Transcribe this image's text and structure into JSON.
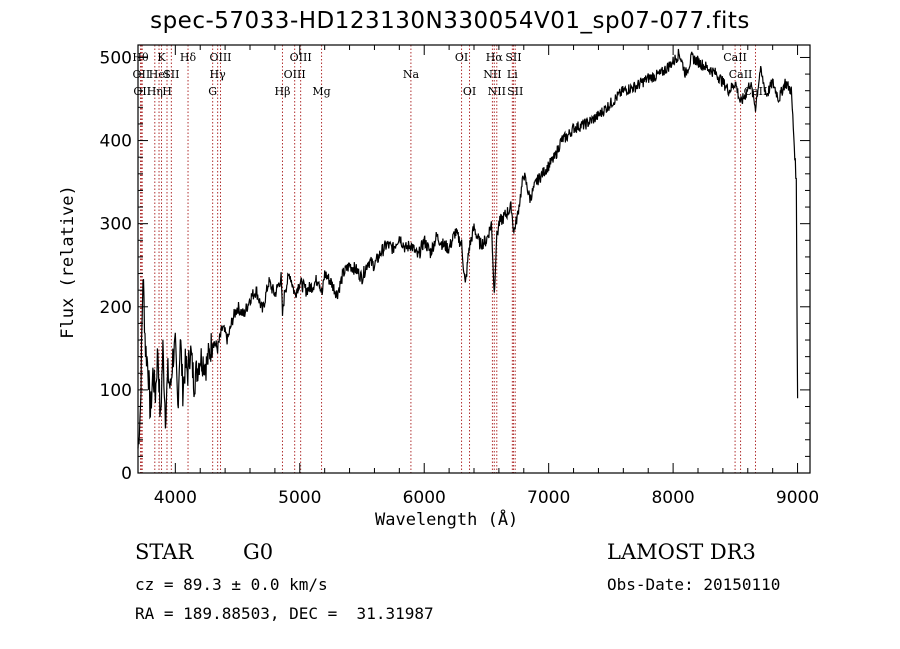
{
  "chart_data": {
    "type": "line",
    "title": "spec-57033-HD123130N330054V01_sp07-077.fits",
    "xlabel": "Wavelength (Å)",
    "ylabel": "Flux (relative)",
    "xlim": [
      3700,
      9100
    ],
    "ylim": [
      0,
      515
    ],
    "xticks": [
      4000,
      5000,
      6000,
      7000,
      8000,
      9000
    ],
    "yticks": [
      0,
      100,
      200,
      300,
      400,
      500
    ],
    "series": [
      {
        "x": [
          3700,
          3720,
          3740,
          3760,
          3780,
          3800,
          3820,
          3840,
          3860,
          3880,
          3900,
          3920,
          3940,
          3960,
          3980,
          4000,
          4020,
          4040,
          4060,
          4080,
          4100,
          4120,
          4150,
          4200,
          4250,
          4300,
          4340,
          4380,
          4420,
          4460,
          4500,
          4550,
          4600,
          4650,
          4700,
          4750,
          4800,
          4850,
          4861,
          4880,
          4920,
          4960,
          5000,
          5050,
          5100,
          5150,
          5180,
          5200,
          5250,
          5300,
          5350,
          5400,
          5450,
          5500,
          5550,
          5600,
          5650,
          5700,
          5750,
          5800,
          5850,
          5893,
          5950,
          6000,
          6050,
          6100,
          6150,
          6200,
          6250,
          6300,
          6330,
          6360,
          6400,
          6450,
          6500,
          6540,
          6563,
          6580,
          6600,
          6650,
          6700,
          6720,
          6750,
          6800,
          6850,
          6900,
          6950,
          7000,
          7050,
          7100,
          7150,
          7200,
          7300,
          7400,
          7500,
          7600,
          7700,
          7800,
          7900,
          8000,
          8050,
          8100,
          8150,
          8200,
          8250,
          8300,
          8350,
          8400,
          8450,
          8500,
          8542,
          8580,
          8620,
          8662,
          8700,
          8750,
          8800,
          8850,
          8900,
          8950,
          8990,
          9000
        ],
        "y": [
          30,
          80,
          240,
          150,
          130,
          70,
          120,
          95,
          150,
          60,
          150,
          70,
          120,
          100,
          140,
          150,
          80,
          165,
          100,
          130,
          120,
          150,
          110,
          140,
          130,
          160,
          150,
          175,
          160,
          185,
          200,
          190,
          210,
          220,
          195,
          230,
          215,
          235,
          190,
          220,
          240,
          215,
          230,
          220,
          225,
          235,
          215,
          240,
          230,
          215,
          240,
          250,
          245,
          235,
          255,
          250,
          265,
          275,
          270,
          285,
          270,
          275,
          260,
          280,
          265,
          285,
          275,
          270,
          290,
          275,
          225,
          270,
          295,
          275,
          280,
          300,
          215,
          280,
          300,
          310,
          320,
          290,
          310,
          360,
          330,
          350,
          360,
          370,
          380,
          400,
          405,
          415,
          420,
          430,
          445,
          460,
          465,
          475,
          480,
          495,
          505,
          480,
          500,
          495,
          490,
          485,
          480,
          470,
          460,
          470,
          445,
          455,
          470,
          440,
          485,
          455,
          470,
          450,
          470,
          460,
          350,
          90
        ]
      }
    ],
    "lines": [
      {
        "w": 3720,
        "row": 0,
        "label": "Hθ"
      },
      {
        "w": 3727,
        "row": 1,
        "label": "OII"
      },
      {
        "w": 3734,
        "row": 2,
        "label": "OII"
      },
      {
        "w": 3835,
        "row": 2,
        "label": "Hη"
      },
      {
        "w": 3869,
        "row": 1,
        "label": "HeI"
      },
      {
        "w": 3889,
        "row": 0,
        "label": "K"
      },
      {
        "w": 3933,
        "row": 2,
        "label": "H"
      },
      {
        "w": 3968,
        "row": 1,
        "label": "SII"
      },
      {
        "w": 4102,
        "row": 0,
        "label": "Hδ"
      },
      {
        "w": 4300,
        "row": 2,
        "label": "G"
      },
      {
        "w": 4340,
        "row": 1,
        "label": "Hγ"
      },
      {
        "w": 4363,
        "row": 0,
        "label": "OIII"
      },
      {
        "w": 4861,
        "row": 2,
        "label": "Hβ"
      },
      {
        "w": 4959,
        "row": 1,
        "label": "OIII"
      },
      {
        "w": 5007,
        "row": 0,
        "label": "OIII"
      },
      {
        "w": 5175,
        "row": 2,
        "label": "Mg"
      },
      {
        "w": 5893,
        "row": 1,
        "label": "Na"
      },
      {
        "w": 6300,
        "row": 0,
        "label": "OI"
      },
      {
        "w": 6364,
        "row": 2,
        "label": "OI"
      },
      {
        "w": 6548,
        "row": 1,
        "label": "NII"
      },
      {
        "w": 6563,
        "row": 0,
        "label": "Hα"
      },
      {
        "w": 6583,
        "row": 2,
        "label": "NII"
      },
      {
        "w": 6708,
        "row": 1,
        "label": "Li"
      },
      {
        "w": 6717,
        "row": 0,
        "label": "SII"
      },
      {
        "w": 6731,
        "row": 2,
        "label": "SII"
      },
      {
        "w": 8498,
        "row": 0,
        "label": "CaII"
      },
      {
        "w": 8542,
        "row": 1,
        "label": "CaII"
      },
      {
        "w": 8662,
        "row": 2,
        "label": "CaII"
      }
    ]
  },
  "info": {
    "class": "STAR",
    "subclass": "G0",
    "survey": "LAMOST DR3",
    "cz": "cz = 89.3 ± 0.0 km/s",
    "obsdate": "Obs-Date: 20150110",
    "radec": "RA = 189.88503, DEC =  31.31987"
  },
  "colors": {
    "line_marker": "#b03030",
    "spectrum": "#000000"
  }
}
